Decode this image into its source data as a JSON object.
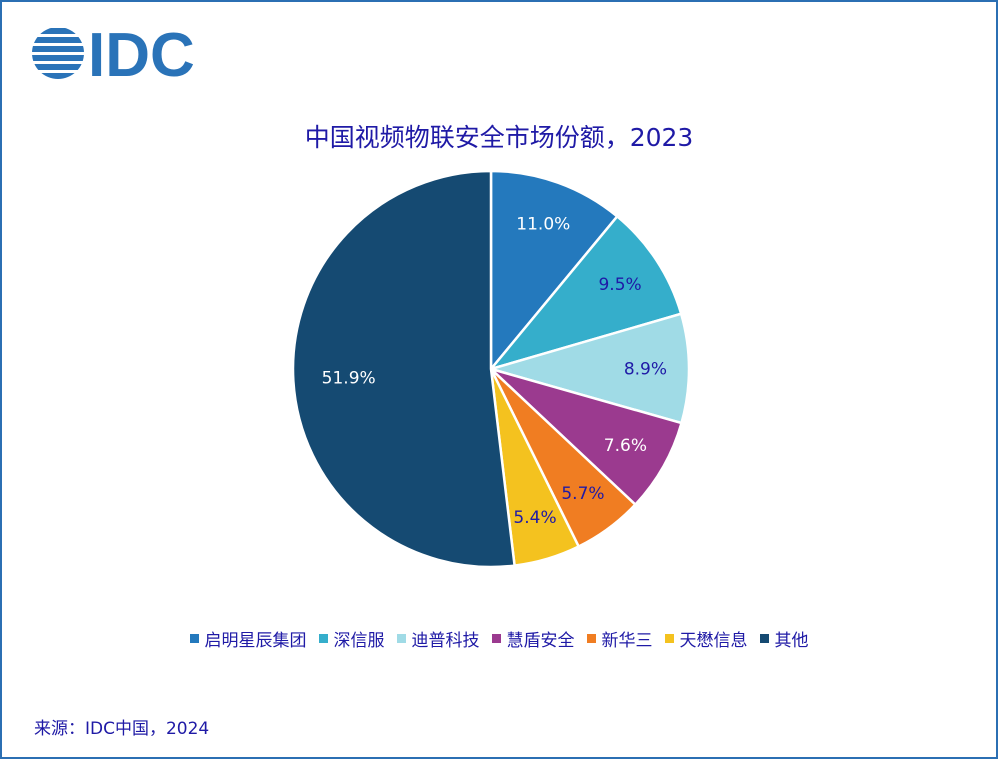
{
  "logo": {
    "text": "IDC",
    "color": "#2a73b8"
  },
  "chart_data": {
    "type": "pie",
    "title": "中国视频物联安全市场份额，2023",
    "slices": [
      {
        "name": "启明星辰集团",
        "value": 11.0,
        "label": "11.0%",
        "color": "#2479bd",
        "label_color": "#ffffff"
      },
      {
        "name": "深信服",
        "value": 9.5,
        "label": "9.5%",
        "color": "#35aecb",
        "label_color": "#1f1aa6"
      },
      {
        "name": "迪普科技",
        "value": 8.9,
        "label": "8.9%",
        "color": "#a0dbe6",
        "label_color": "#1f1aa6"
      },
      {
        "name": "慧盾安全",
        "value": 7.6,
        "label": "7.6%",
        "color": "#9b3a8f",
        "label_color": "#ffffff"
      },
      {
        "name": "新华三",
        "value": 5.7,
        "label": "5.7%",
        "color": "#f07d22",
        "label_color": "#1f1aa6"
      },
      {
        "name": "天懋信息",
        "value": 5.4,
        "label": "5.4%",
        "color": "#f4c21f",
        "label_color": "#1f1aa6"
      },
      {
        "name": "其他",
        "value": 51.9,
        "label": "51.9%",
        "color": "#154a72",
        "label_color": "#ffffff"
      }
    ],
    "legend_position": "bottom"
  },
  "source": "来源：IDC中国，2024"
}
